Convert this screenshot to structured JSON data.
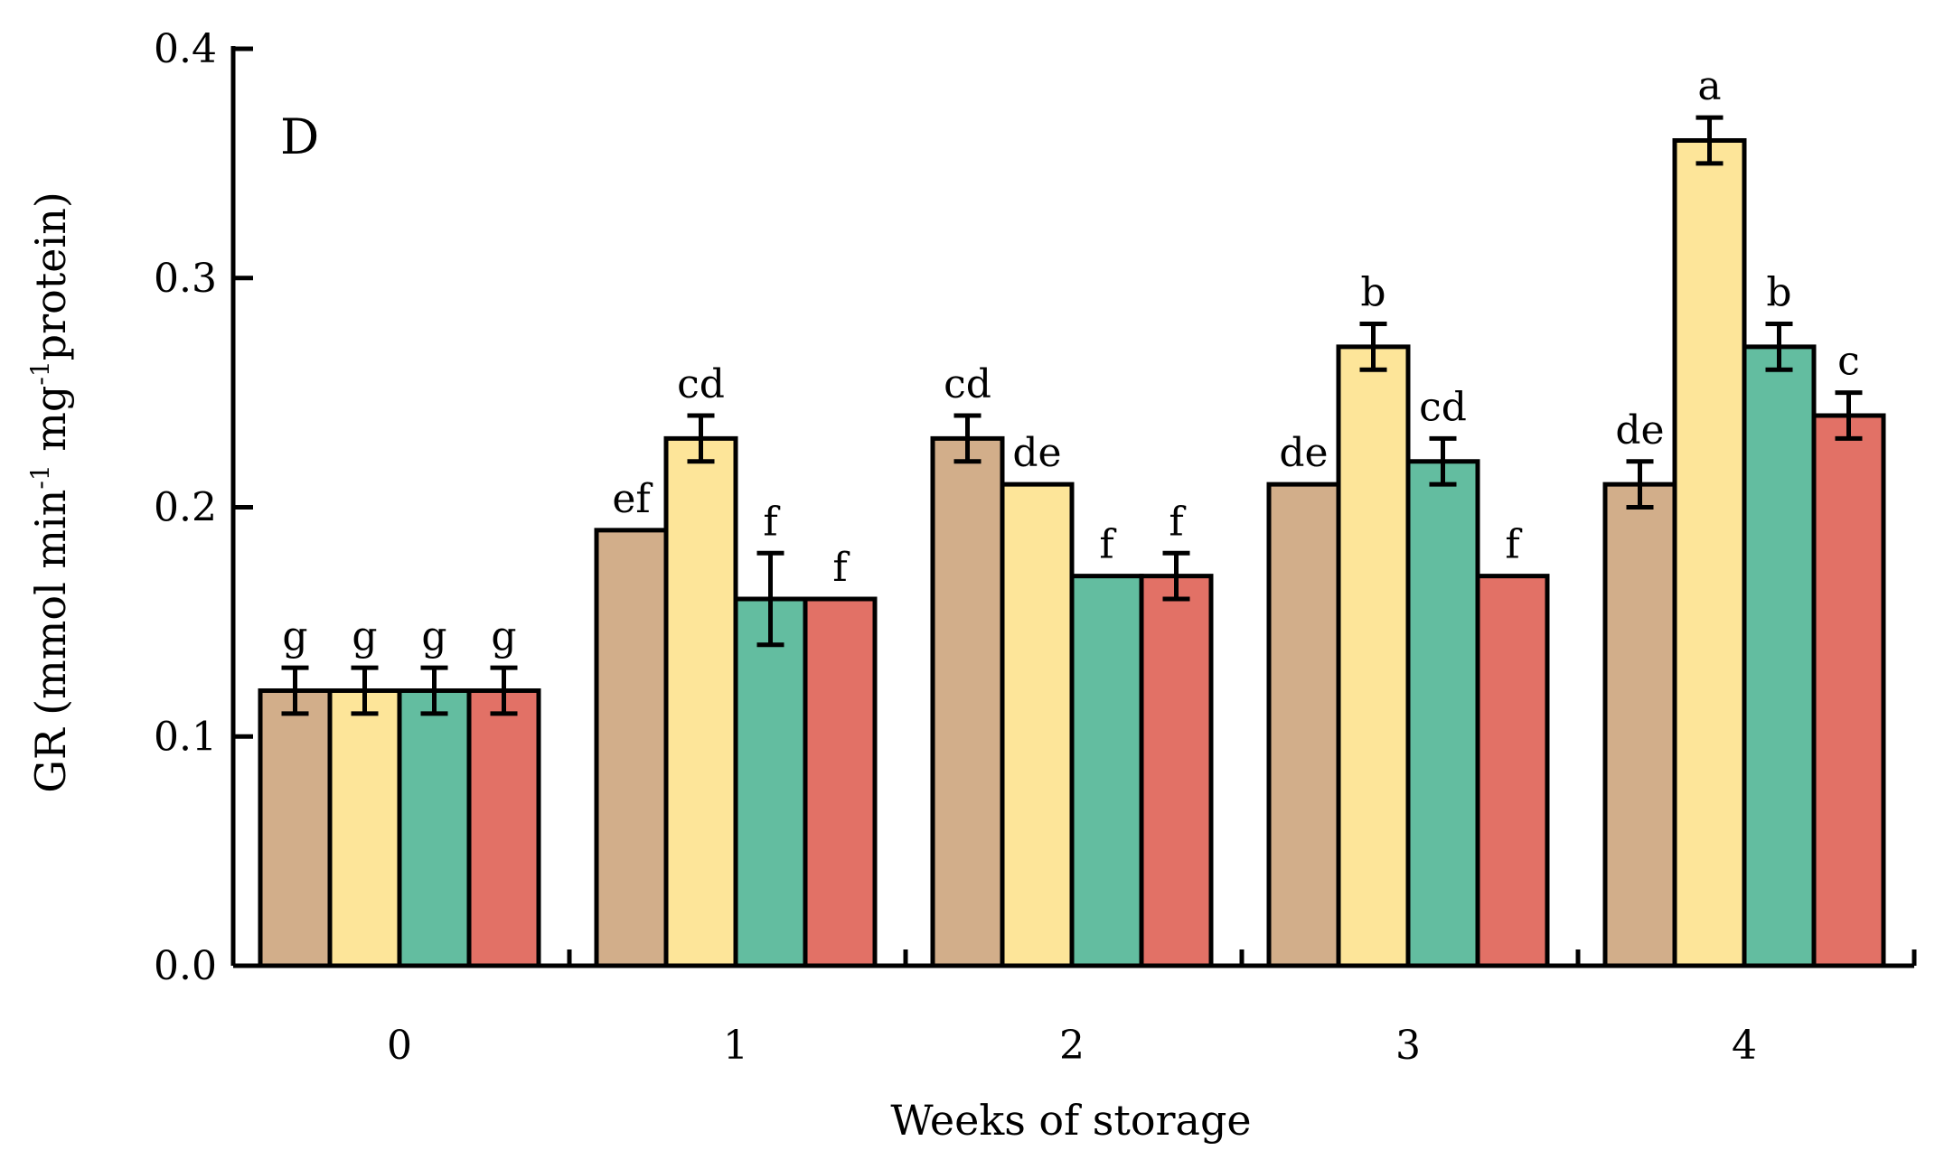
{
  "chart_data": {
    "type": "bar",
    "panel_label": "D",
    "xlabel": "Weeks of storage",
    "ylabel_parts": [
      "GR (mmol min",
      "-1",
      " mg",
      "-1",
      "protein)"
    ],
    "ylim": [
      0.0,
      0.4
    ],
    "yticks": [
      "0.0",
      "0.1",
      "0.2",
      "0.3",
      "0.4"
    ],
    "categories": [
      "0",
      "1",
      "2",
      "3",
      "4"
    ],
    "series": [
      {
        "color": "#D2AE8A",
        "values": [
          0.12,
          0.19,
          0.23,
          0.21,
          0.21
        ],
        "errors": [
          0.01,
          0,
          0.01,
          0,
          0.01
        ],
        "labels": [
          "g",
          "ef",
          "cd",
          "de",
          "de"
        ]
      },
      {
        "color": "#FDE599",
        "values": [
          0.12,
          0.23,
          0.21,
          0.27,
          0.36
        ],
        "errors": [
          0.01,
          0.01,
          0,
          0.01,
          0.01
        ],
        "labels": [
          "g",
          "cd",
          "de",
          "b",
          "a"
        ]
      },
      {
        "color": "#63BDA0",
        "values": [
          0.12,
          0.16,
          0.17,
          0.22,
          0.27
        ],
        "errors": [
          0.01,
          0.02,
          0,
          0.01,
          0.01
        ],
        "labels": [
          "g",
          "f",
          "f",
          "cd",
          "b"
        ]
      },
      {
        "color": "#E27166",
        "values": [
          0.12,
          0.16,
          0.17,
          0.17,
          0.24
        ],
        "errors": [
          0.01,
          0,
          0.01,
          0,
          0.01
        ],
        "labels": [
          "g",
          "f",
          "f",
          "f",
          "c"
        ]
      }
    ]
  }
}
